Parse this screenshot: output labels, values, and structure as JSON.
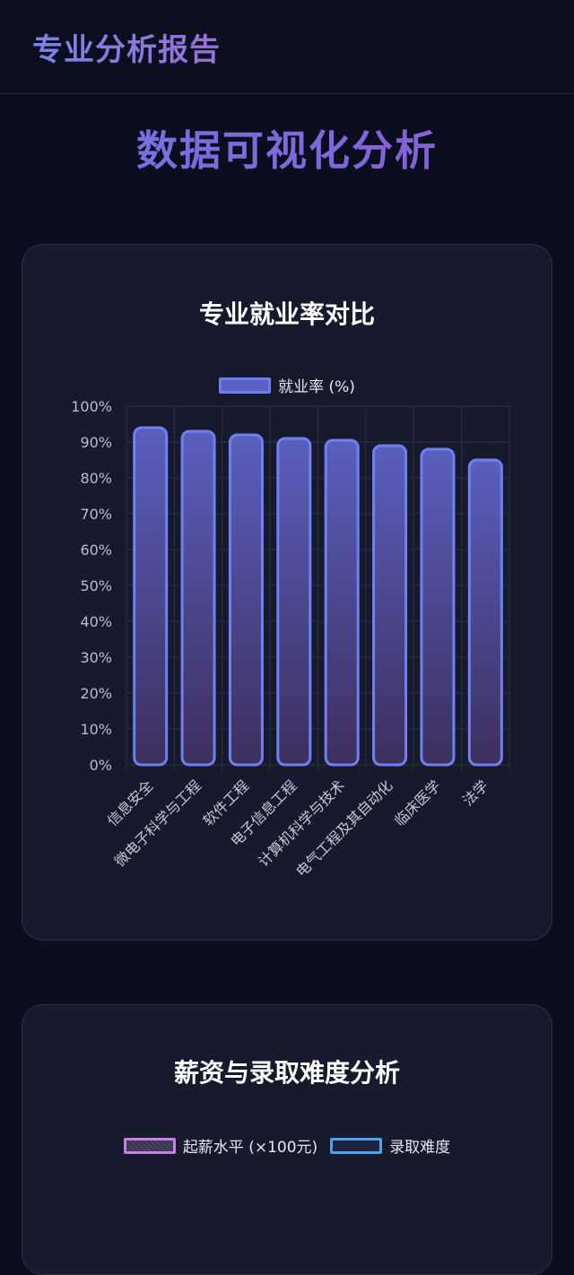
{
  "header": {
    "brand": "专业分析报告"
  },
  "page": {
    "title": "数据可视化分析"
  },
  "charts": {
    "rate_card": {
      "title": "专业就业率对比",
      "legend": "就业率 (%)"
    },
    "salary_card": {
      "title": "薪资与录取难度分析",
      "legend_salary": "起薪水平 (×100元)",
      "legend_difficulty": "录取难度"
    }
  },
  "colors": {
    "bar_fill_top": "#5a5fbe",
    "bar_fill_bottom": "#3d2f5e",
    "bar_stroke": "#6f80f2",
    "salary": "#c77fe8",
    "difficulty": "#4aa3f0"
  },
  "chart_data": [
    {
      "type": "bar",
      "title": "专业就业率对比",
      "categories": [
        "信息安全",
        "微电子科学与工程",
        "软件工程",
        "电子信息工程",
        "计算机科学与技术",
        "电气工程及其自动化",
        "临床医学",
        "法学"
      ],
      "series": [
        {
          "name": "就业率 (%)",
          "values": [
            94,
            93,
            92,
            91,
            90.5,
            89,
            88,
            85
          ]
        }
      ],
      "yticks": [
        "0%",
        "10%",
        "20%",
        "30%",
        "40%",
        "50%",
        "60%",
        "70%",
        "80%",
        "90%",
        "100%"
      ],
      "ylim": [
        0,
        100
      ],
      "grid": true,
      "legend": "top-center"
    }
  ]
}
